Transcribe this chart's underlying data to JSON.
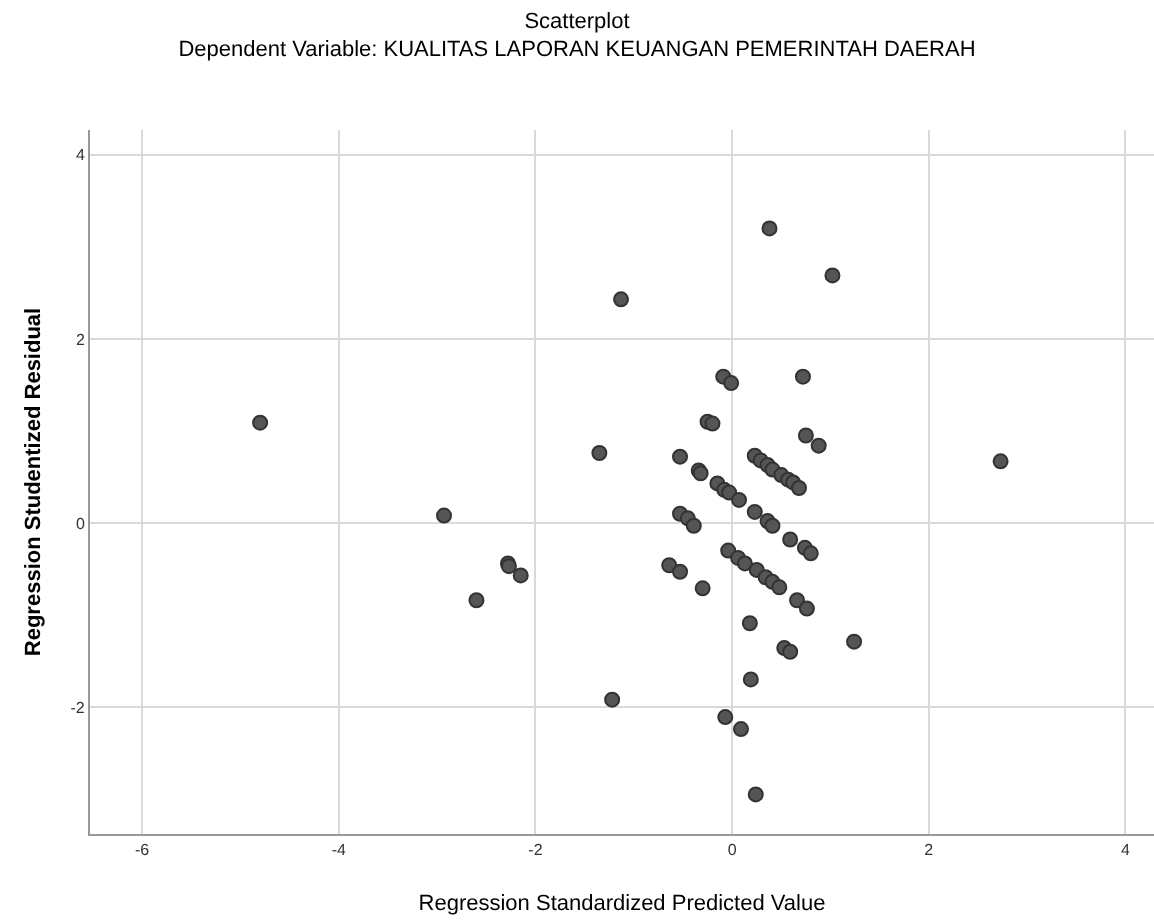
{
  "chart_data": {
    "type": "scatter",
    "title": "Scatterplot",
    "subtitle": "Dependent Variable: KUALITAS LAPORAN KEUANGAN PEMERINTAH DAERAH",
    "xlabel": "Regression Standardized Predicted Value",
    "ylabel": "Regression Studentized Residual",
    "x": [
      -4.8,
      -2.93,
      -2.28,
      -2.27,
      -2.15,
      -2.6,
      2.73,
      0.38,
      1.02,
      -1.13,
      -0.09,
      -0.01,
      0.72,
      -0.25,
      -0.2,
      0.75,
      0.88,
      -1.35,
      -0.53,
      -0.34,
      -0.32,
      0.23,
      0.29,
      0.36,
      0.41,
      0.5,
      0.57,
      0.62,
      0.68,
      -0.15,
      -0.08,
      -0.03,
      0.07,
      -0.53,
      -0.45,
      -0.39,
      0.23,
      0.36,
      0.41,
      0.59,
      0.74,
      0.8,
      -0.64,
      -0.53,
      -0.3,
      -0.04,
      0.06,
      0.13,
      0.25,
      0.34,
      0.41,
      0.48,
      0.66,
      0.76,
      0.18,
      0.53,
      0.59,
      1.24,
      0.19,
      -1.22,
      -0.07,
      0.09,
      0.24
    ],
    "values": [
      1.09,
      0.08,
      -0.44,
      -0.47,
      -0.57,
      -0.84,
      0.67,
      3.2,
      2.69,
      2.43,
      1.59,
      1.52,
      1.59,
      1.1,
      1.08,
      0.95,
      0.84,
      0.76,
      0.72,
      0.57,
      0.54,
      0.73,
      0.68,
      0.63,
      0.58,
      0.52,
      0.47,
      0.44,
      0.38,
      0.43,
      0.36,
      0.33,
      0.25,
      0.1,
      0.05,
      -0.03,
      0.12,
      0.02,
      -0.03,
      -0.18,
      -0.27,
      -0.33,
      -0.46,
      -0.53,
      -0.71,
      -0.3,
      -0.38,
      -0.44,
      -0.51,
      -0.59,
      -0.64,
      -0.7,
      -0.84,
      -0.93,
      -1.09,
      -1.36,
      -1.4,
      -1.29,
      -1.7,
      -1.92,
      -2.11,
      -2.24,
      -2.95
    ],
    "color": "#555555",
    "marker": "circle",
    "grid": true,
    "xlim": [
      -6.53,
      4.29
    ],
    "ylim": [
      -3.38,
      4.27
    ],
    "xticks": [
      -6,
      -4,
      -2,
      0,
      2,
      4
    ],
    "yticks": [
      -2,
      0,
      2,
      4
    ]
  }
}
